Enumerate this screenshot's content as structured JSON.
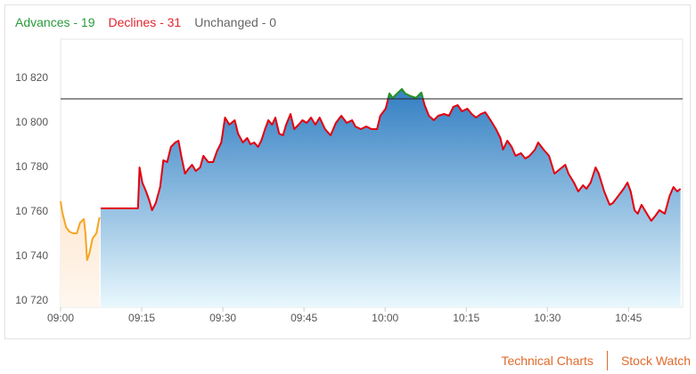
{
  "breadth": [
    {
      "label": "Advances - 19",
      "color": "#2a9a3c"
    },
    {
      "label": "Declines - 31",
      "color": "#e0262f"
    },
    {
      "label": "Unchanged - 0",
      "color": "#666666"
    }
  ],
  "chart_data": {
    "type": "line",
    "xlim": [
      540,
      655
    ],
    "ylim": [
      10717.2,
      10837.6
    ],
    "xticks": [
      {
        "value": 540,
        "label": "09:00"
      },
      {
        "value": 555,
        "label": "09:15"
      },
      {
        "value": 570,
        "label": "09:30"
      },
      {
        "value": 585,
        "label": "09:45"
      },
      {
        "value": 600,
        "label": "10:00"
      },
      {
        "value": 615,
        "label": "10:15"
      },
      {
        "value": 630,
        "label": "10:30"
      },
      {
        "value": 645,
        "label": "10:45"
      }
    ],
    "yticks": [
      {
        "value": 10720,
        "label": "10 720"
      },
      {
        "value": 10740,
        "label": "10 740"
      },
      {
        "value": 10760,
        "label": "10 760"
      },
      {
        "value": 10780,
        "label": "10 780"
      },
      {
        "value": 10800,
        "label": "10 800"
      },
      {
        "value": 10820,
        "label": "10 820"
      }
    ],
    "grid": false,
    "reference": 10810.8,
    "reference_color": "#222222",
    "series": [
      {
        "color": "#f5a623",
        "fill": [
          "#fcd9b3",
          "#fff7ef"
        ],
        "x": [
          540,
          540.3,
          541,
          541.6,
          542.3,
          543,
          543.6,
          544.3,
          544.6,
          544.9,
          545.3,
          545.9,
          546.6,
          547.2
        ],
        "values": [
          10764.8,
          10760,
          10753.2,
          10751.2,
          10750.4,
          10750.4,
          10755.2,
          10756.8,
          10750.4,
          10738.4,
          10741.2,
          10748,
          10750.4,
          10757.6
        ]
      },
      {
        "color": "#e3000f",
        "above_color": "#1a9a2a",
        "fill": [
          "#3a84c5",
          "#e9f8fd"
        ],
        "x": [
          547.4,
          554.3,
          554.6,
          555.1,
          555.8,
          556.4,
          556.9,
          557.6,
          558.4,
          559.0,
          559.7,
          560.4,
          561.2,
          561.8,
          562.3,
          563.0,
          563.6,
          564.3,
          565.0,
          565.8,
          566.4,
          567.3,
          568.2,
          568.9,
          569.7,
          570.4,
          571.2,
          572.2,
          572.8,
          573.7,
          574.5,
          575.1,
          575.8,
          576.5,
          577.1,
          577.8,
          578.4,
          579.1,
          579.7,
          580.4,
          581.1,
          581.7,
          582.5,
          583.2,
          584.0,
          584.7,
          585.5,
          586.3,
          587.1,
          587.9,
          588.9,
          589.9,
          590.9,
          591.9,
          592.9,
          593.9,
          594.5,
          595.5,
          596.5,
          597.5,
          598.5,
          599.1,
          600.1,
          600.8,
          601.4,
          602.4,
          603.1,
          603.7,
          604.7,
          605.7,
          606.7,
          607.3,
          608.1,
          609.0,
          609.8,
          610.9,
          611.8,
          612.6,
          613.4,
          614.2,
          615.2,
          616.0,
          616.8,
          617.7,
          618.5,
          619.5,
          620.5,
          621.3,
          621.8,
          622.6,
          623.4,
          624.1,
          625.1,
          625.9,
          626.7,
          627.7,
          628.3,
          629.3,
          630.3,
          631.3,
          632.3,
          633.3,
          633.9,
          634.9,
          635.7,
          636.6,
          637.2,
          638.0,
          638.9,
          639.5,
          640.5,
          641.5,
          642.1,
          643.1,
          644.1,
          644.8,
          645.4,
          646.1,
          646.7,
          647.4,
          648.4,
          649.2,
          650.0,
          650.7,
          651.7,
          652.6,
          653.3,
          654.0,
          654.6
        ],
        "values": [
          10761.6,
          10761.6,
          10780,
          10773.2,
          10769.2,
          10765.2,
          10760.8,
          10764,
          10771.2,
          10783.2,
          10782.4,
          10789.2,
          10791.2,
          10792,
          10785.2,
          10777.2,
          10779.2,
          10781.2,
          10778.4,
          10780,
          10785.2,
          10782.4,
          10782.4,
          10787.2,
          10791.2,
          10802.4,
          10799.2,
          10801.2,
          10795.2,
          10791.2,
          10793.2,
          10790.4,
          10791.2,
          10789.2,
          10792,
          10797.2,
          10801.2,
          10799.2,
          10802.4,
          10795.2,
          10794.4,
          10799.2,
          10804,
          10797.2,
          10799.2,
          10801.2,
          10800,
          10802.4,
          10799.2,
          10802.4,
          10797.2,
          10794.4,
          10800,
          10803.2,
          10800,
          10801.2,
          10798.4,
          10797.2,
          10798.4,
          10797.2,
          10797.2,
          10803.2,
          10806.4,
          10813.2,
          10811.2,
          10813.6,
          10815.2,
          10813.2,
          10812,
          10811.2,
          10813.6,
          10808,
          10803.2,
          10801.2,
          10803.2,
          10804,
          10803.2,
          10807.2,
          10808,
          10805.2,
          10806.4,
          10804,
          10802.4,
          10804,
          10804.8,
          10801.2,
          10797.2,
          10793.2,
          10788,
          10792,
          10789.2,
          10785.2,
          10786.4,
          10784,
          10785.2,
          10788,
          10791.2,
          10788,
          10785.2,
          10777.2,
          10779.2,
          10781.2,
          10777.2,
          10773.2,
          10769.2,
          10772,
          10770.4,
          10773.2,
          10780,
          10777.2,
          10769.2,
          10763.2,
          10764,
          10767.2,
          10770.4,
          10773.2,
          10769.2,
          10760.8,
          10759.2,
          10763.2,
          10759.2,
          10756,
          10758.4,
          10760.8,
          10759.2,
          10767.2,
          10771.2,
          10769.2,
          10770.4
        ]
      }
    ]
  },
  "links": [
    "Technical Charts",
    "Stock Watch"
  ]
}
